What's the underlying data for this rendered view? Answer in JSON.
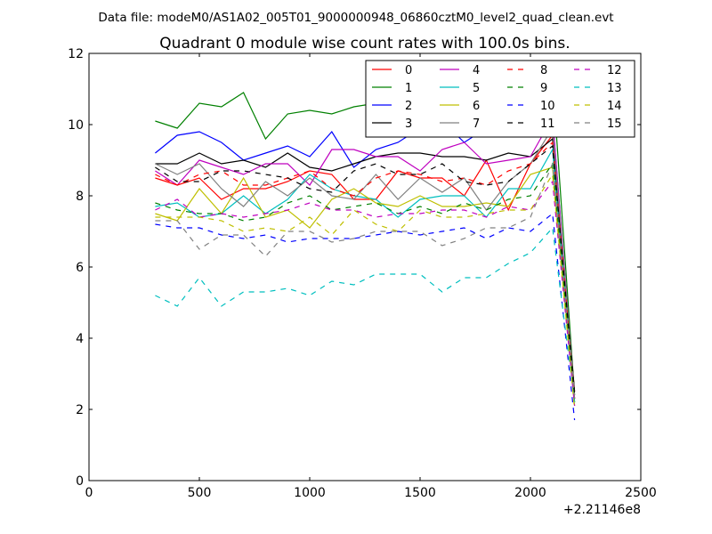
{
  "header": {
    "file_line": "Data file: modeM0/AS1A02_005T01_9000000948_06860cztM0_level2_quad_clean.evt"
  },
  "chart_data": {
    "type": "line",
    "title": "Quadrant 0 module wise count rates with 100.0s bins.",
    "xlabel": "",
    "ylabel": "",
    "x_offset_label": "+2.21146e8",
    "xlim": [
      0,
      2500
    ],
    "ylim": [
      0,
      12
    ],
    "xticks": [
      0,
      500,
      1000,
      1500,
      2000,
      2500
    ],
    "yticks": [
      0,
      2,
      4,
      6,
      8,
      10,
      12
    ],
    "xtick_labels": [
      "0",
      "500",
      "1000",
      "1500",
      "2000",
      "2500"
    ],
    "ytick_labels": [
      "0",
      "2",
      "4",
      "6",
      "8",
      "10",
      "12"
    ],
    "grid": false,
    "legend_placement": "top-right",
    "x": [
      300,
      400,
      500,
      600,
      700,
      800,
      900,
      1000,
      1100,
      1200,
      1300,
      1400,
      1500,
      1600,
      1700,
      1800,
      1900,
      2000,
      2100,
      2200
    ],
    "series": [
      {
        "name": "0",
        "color": "#ff0000",
        "dash": "solid",
        "values": [
          8.5,
          8.3,
          8.5,
          7.9,
          8.2,
          8.2,
          8.4,
          8.7,
          8.6,
          7.9,
          7.9,
          8.7,
          8.5,
          8.5,
          8.0,
          9.0,
          7.6,
          8.9,
          9.7,
          2.5
        ]
      },
      {
        "name": "1",
        "color": "#008000",
        "dash": "solid",
        "values": [
          10.1,
          9.9,
          10.6,
          10.5,
          10.9,
          9.6,
          10.3,
          10.4,
          10.3,
          10.5,
          10.6,
          10.1,
          10.6,
          10.3,
          10.2,
          10.5,
          10.2,
          11.0,
          11.3,
          2.4
        ]
      },
      {
        "name": "2",
        "color": "#0000ff",
        "dash": "solid",
        "values": [
          9.2,
          9.7,
          9.8,
          9.5,
          9.0,
          9.2,
          9.4,
          9.1,
          9.8,
          8.8,
          9.3,
          9.5,
          9.9,
          10.1,
          9.5,
          9.9,
          10.1,
          10.2,
          10.2,
          2.3
        ]
      },
      {
        "name": "3",
        "color": "#000000",
        "dash": "solid",
        "values": [
          8.9,
          8.9,
          9.2,
          8.9,
          9.0,
          8.8,
          9.2,
          8.8,
          8.7,
          8.9,
          9.1,
          9.2,
          9.2,
          9.1,
          9.1,
          9.0,
          9.2,
          9.1,
          9.6,
          2.5
        ]
      },
      {
        "name": "4",
        "color": "#bf00bf",
        "dash": "solid",
        "values": [
          8.7,
          8.3,
          9.0,
          8.8,
          8.6,
          8.9,
          8.9,
          8.3,
          9.3,
          9.3,
          9.1,
          9.1,
          8.7,
          9.3,
          9.5,
          8.9,
          9.0,
          9.1,
          10.2,
          2.3
        ]
      },
      {
        "name": "5",
        "color": "#00bfbf",
        "dash": "solid",
        "values": [
          7.7,
          7.8,
          7.4,
          7.5,
          8.0,
          7.5,
          7.9,
          8.6,
          8.2,
          8.0,
          7.9,
          7.4,
          7.9,
          8.0,
          8.0,
          7.4,
          8.2,
          8.2,
          9.3,
          2.2
        ]
      },
      {
        "name": "6",
        "color": "#bfbf00",
        "dash": "solid",
        "values": [
          7.5,
          7.3,
          8.2,
          7.5,
          8.5,
          7.4,
          7.6,
          7.1,
          7.9,
          8.2,
          7.8,
          7.7,
          8.0,
          7.7,
          7.7,
          7.8,
          7.7,
          8.6,
          8.8,
          2.1
        ]
      },
      {
        "name": "7",
        "color": "#808080",
        "dash": "solid",
        "values": [
          8.9,
          8.6,
          8.9,
          8.2,
          7.7,
          8.4,
          8.0,
          8.5,
          8.0,
          7.9,
          8.6,
          7.9,
          8.5,
          8.1,
          8.5,
          7.6,
          8.4,
          8.9,
          9.9,
          2.4
        ]
      },
      {
        "name": "8",
        "color": "#ff0000",
        "dash": "dashed",
        "values": [
          8.6,
          8.3,
          8.6,
          8.7,
          8.3,
          8.3,
          8.5,
          8.7,
          8.2,
          8.0,
          8.5,
          8.7,
          8.6,
          8.4,
          8.5,
          8.3,
          8.7,
          8.9,
          9.5,
          2.3
        ]
      },
      {
        "name": "9",
        "color": "#008000",
        "dash": "dashed",
        "values": [
          7.8,
          7.6,
          7.5,
          7.5,
          7.3,
          7.4,
          7.8,
          8.0,
          7.6,
          7.7,
          7.8,
          7.5,
          7.7,
          7.5,
          7.8,
          7.6,
          7.9,
          8.0,
          8.9,
          2.2
        ]
      },
      {
        "name": "10",
        "color": "#0000ff",
        "dash": "dashed",
        "values": [
          7.2,
          7.1,
          7.1,
          6.9,
          6.8,
          6.9,
          6.7,
          6.8,
          6.8,
          6.8,
          6.9,
          7.0,
          6.9,
          7.0,
          7.1,
          6.8,
          7.1,
          7.0,
          7.5,
          1.7
        ]
      },
      {
        "name": "11",
        "color": "#000000",
        "dash": "dashed",
        "values": [
          8.8,
          8.4,
          8.4,
          8.7,
          8.7,
          8.6,
          8.5,
          8.2,
          8.1,
          8.7,
          8.9,
          8.6,
          8.6,
          8.9,
          8.4,
          8.3,
          8.4,
          8.9,
          9.4,
          2.4
        ]
      },
      {
        "name": "12",
        "color": "#bf00bf",
        "dash": "dashed",
        "values": [
          7.6,
          7.9,
          7.4,
          7.5,
          7.4,
          7.5,
          7.6,
          7.8,
          7.6,
          7.6,
          7.4,
          7.5,
          7.5,
          7.6,
          7.6,
          7.4,
          7.7,
          7.6,
          8.4,
          2.1
        ]
      },
      {
        "name": "13",
        "color": "#00bfbf",
        "dash": "dashed",
        "values": [
          5.2,
          4.9,
          5.7,
          4.9,
          5.3,
          5.3,
          5.4,
          5.2,
          5.6,
          5.5,
          5.8,
          5.8,
          5.8,
          5.3,
          5.7,
          5.7,
          6.1,
          6.4,
          7.1,
          2.2
        ]
      },
      {
        "name": "14",
        "color": "#bfbf00",
        "dash": "dashed",
        "values": [
          7.4,
          7.4,
          7.4,
          7.3,
          7.0,
          7.1,
          7.0,
          7.4,
          6.9,
          7.6,
          7.2,
          7.0,
          7.6,
          7.4,
          7.4,
          7.5,
          7.6,
          7.6,
          8.6,
          2.0
        ]
      },
      {
        "name": "15",
        "color": "#808080",
        "dash": "dashed",
        "values": [
          7.3,
          7.3,
          6.5,
          6.9,
          6.9,
          6.3,
          7.0,
          7.0,
          6.7,
          6.8,
          7.0,
          7.0,
          7.0,
          6.6,
          6.8,
          7.1,
          7.1,
          7.4,
          8.9,
          2.3
        ]
      }
    ]
  }
}
